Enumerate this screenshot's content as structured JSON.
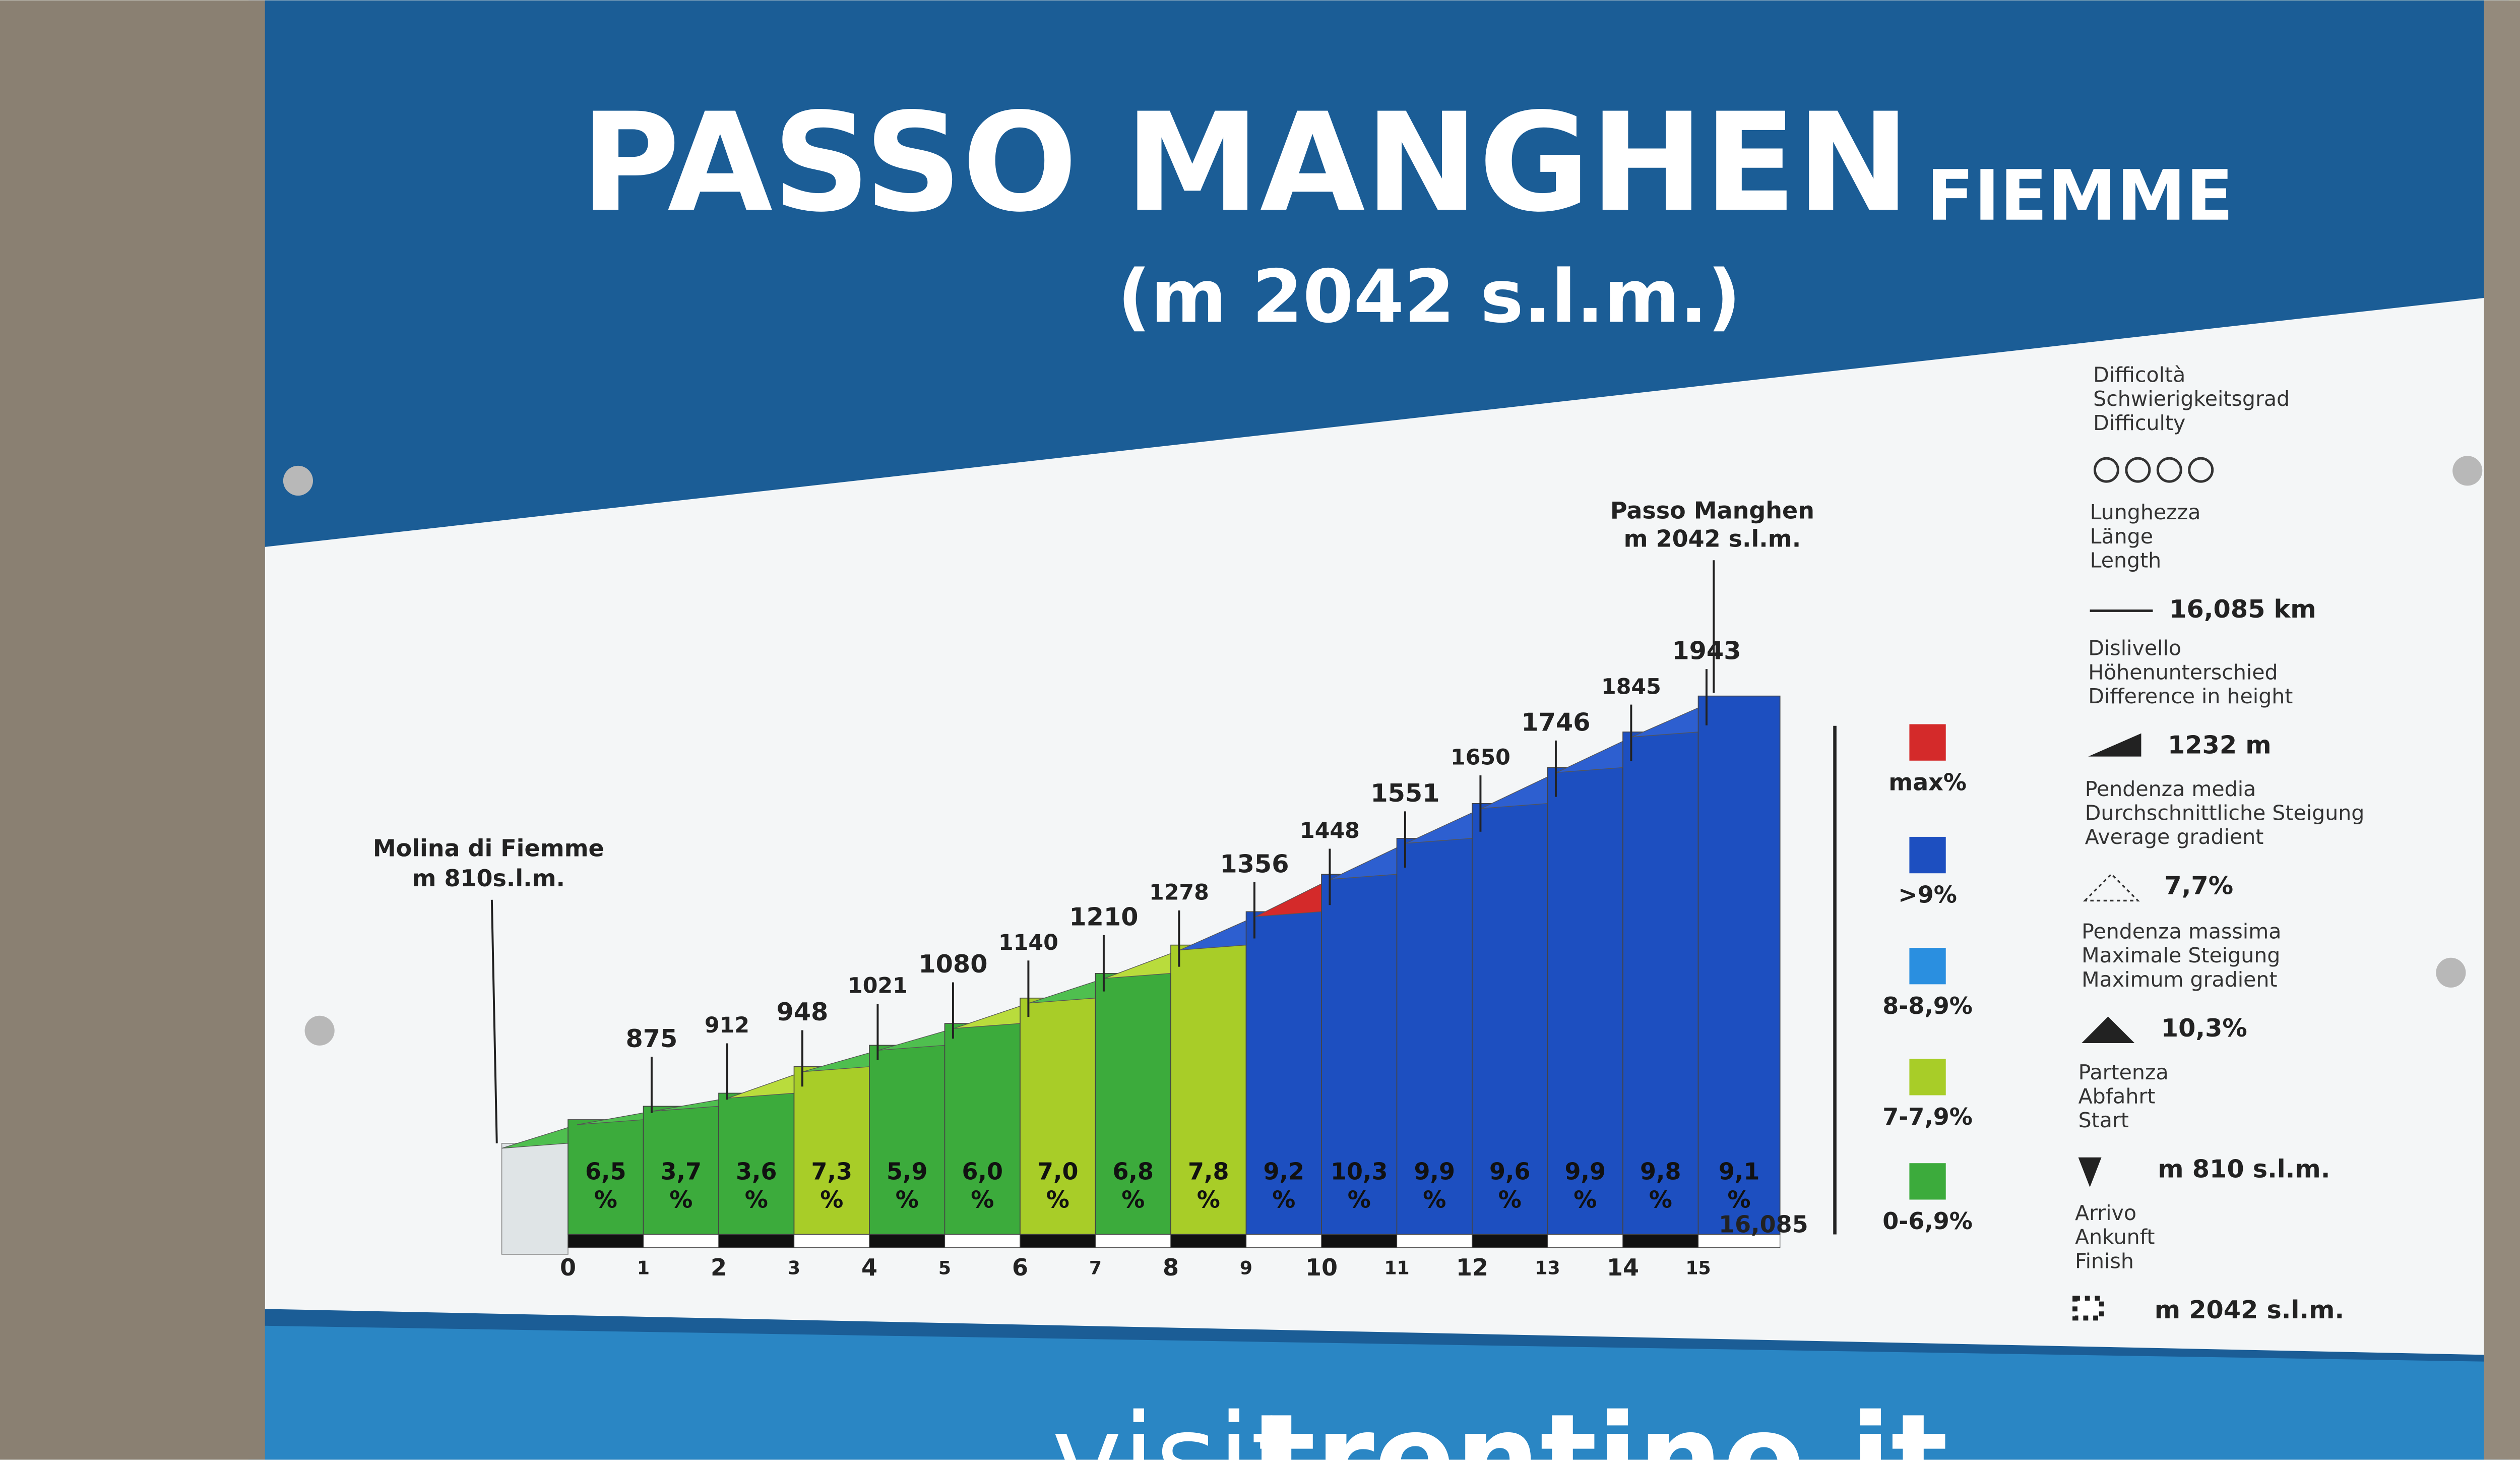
{
  "header": {
    "title": "PASSO MANGHEN",
    "region": "FIEMME",
    "altitude": "(m 2042 s.l.m.)"
  },
  "profile": {
    "start": {
      "name": "Molina di Fiemme",
      "altitude_label": "m 810s.l.m.",
      "elevation": 810
    },
    "finish": {
      "name": "Passo Manghen",
      "altitude_label": "m 2042 s.l.m.",
      "elevation": 2042
    },
    "elevations": [
      875,
      912,
      948,
      1021,
      1080,
      1140,
      1210,
      1278,
      1356,
      1448,
      1551,
      1650,
      1746,
      1845,
      1943
    ],
    "gradients": [
      6.5,
      3.7,
      3.6,
      7.3,
      5.9,
      6.0,
      7.0,
      6.8,
      7.8,
      9.2,
      10.3,
      9.9,
      9.6,
      9.9,
      9.8,
      9.1
    ],
    "gradient_labels": [
      "6,5",
      "3,7",
      "3,6",
      "7,3",
      "5,9",
      "6,0",
      "7,0",
      "6,8",
      "7,8",
      "9,2",
      "10,3",
      "9,9",
      "9,6",
      "9,9",
      "9,8",
      "9,1"
    ],
    "gradient_unit": "%",
    "xticks": [
      0,
      1,
      2,
      3,
      4,
      5,
      6,
      7,
      8,
      9,
      10,
      11,
      12,
      13,
      14,
      15,
      {
        "value": 16.085,
        "label": "16,085"
      }
    ],
    "segment_colors": [
      "#3cab3c",
      "#3cab3c",
      "#3cab3c",
      "#a8cd28",
      "#3cab3c",
      "#3cab3c",
      "#a8cd28",
      "#3cab3c",
      "#a8cd28",
      "#1d4fc0",
      "#1d4fc0",
      "#1d4fc0",
      "#1d4fc0",
      "#1d4fc0",
      "#1d4fc0",
      "#1d4fc0"
    ],
    "cap_colors": [
      "#4fbf4f",
      "#4fbf4f",
      "#4fbf4f",
      "#b9dc3c",
      "#4fbf4f",
      "#4fbf4f",
      "#b9dc3c",
      "#4fbf4f",
      "#b9dc3c",
      "#2d5fd0",
      "#d42a2a",
      "#2d5fd0",
      "#2d5fd0",
      "#2d5fd0",
      "#2d5fd0",
      "#2d5fd0"
    ]
  },
  "legend": [
    {
      "label": "max%",
      "color": "#d42a2a"
    },
    {
      "label": ">9%",
      "color": "#1d4fc0"
    },
    {
      "label": "8-8,9%",
      "color": "#2a8fe0"
    },
    {
      "label": "7-7,9%",
      "color": "#a8cd28"
    },
    {
      "label": "0-6,9%",
      "color": "#3cab3c"
    }
  ],
  "info": [
    {
      "lines": [
        "Difficoltà",
        "Schwierigkeitsgrad",
        "Difficulty"
      ]
    },
    {
      "lines": [
        "Lunghezza",
        "Länge",
        "Length"
      ],
      "value": "16,085 km"
    },
    {
      "lines": [
        "Dislivello",
        "Höhenunterschied",
        "Difference in height"
      ],
      "value": "1232 m"
    },
    {
      "lines": [
        "Pendenza media",
        "Durchschnittliche Steigung",
        "Average gradient"
      ],
      "value": "7,7%"
    },
    {
      "lines": [
        "Pendenza massima",
        "Maximale Steigung",
        "Maximum gradient"
      ],
      "value": "10,3%"
    },
    {
      "lines": [
        "Partenza",
        "Abfahrt",
        "Start"
      ],
      "value": "m 810 s.l.m."
    },
    {
      "lines": [
        "Arrivo",
        "Ankunft",
        "Finish"
      ],
      "value": "m 2042 s.l.m."
    }
  ],
  "footer": {
    "prefix": "visit",
    "brand": "trentino.it"
  }
}
